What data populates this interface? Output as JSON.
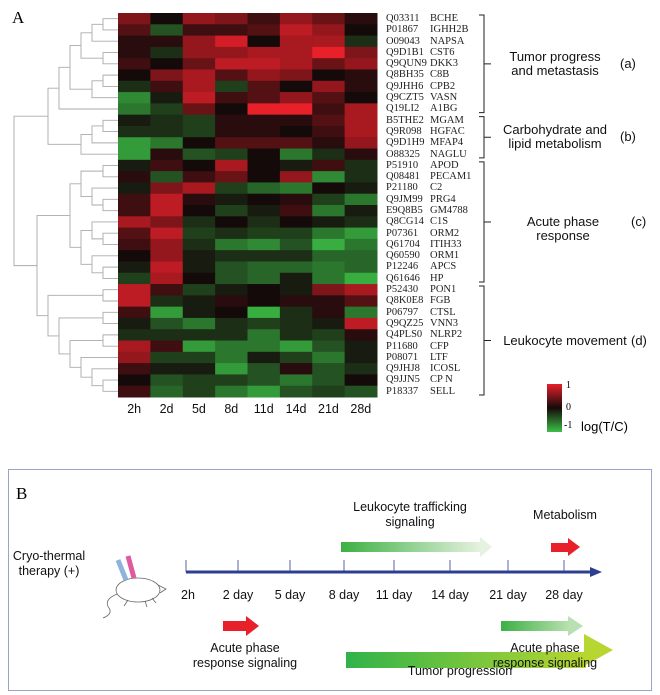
{
  "panel_a_label": "A",
  "panel_b_label": "B",
  "chart_data": {
    "type": "heatmap",
    "columns": [
      "2h",
      "2d",
      "5d",
      "8d",
      "11d",
      "14d",
      "21d",
      "28d"
    ],
    "rows": [
      {
        "id": "Q03311",
        "gene": "BCHE",
        "values": [
          0.5,
          0,
          0.6,
          0.5,
          0.2,
          0.6,
          0.4,
          0.1
        ]
      },
      {
        "id": "P01867",
        "gene": "IGHH2B",
        "values": [
          0.3,
          -0.4,
          0.2,
          0.2,
          0.3,
          0.8,
          0.6,
          0
        ]
      },
      {
        "id": "O09043",
        "gene": "NAPSA",
        "values": [
          0.1,
          0.1,
          0.6,
          0.9,
          0,
          0.7,
          0.7,
          -0.2
        ]
      },
      {
        "id": "Q9D1B1",
        "gene": "CST6",
        "values": [
          0.1,
          -0.2,
          0.6,
          0.6,
          0.7,
          0.7,
          1,
          0.5
        ]
      },
      {
        "id": "Q9QUN9",
        "gene": "DKK3",
        "values": [
          0.2,
          0,
          0.4,
          0.8,
          0.8,
          0.7,
          0.4,
          0.6
        ]
      },
      {
        "id": "Q8BH35",
        "gene": "C8B",
        "values": [
          0,
          0.5,
          0.7,
          0.3,
          0.6,
          0.5,
          0,
          0.1
        ]
      },
      {
        "id": "Q9JHH6",
        "gene": "CPB2",
        "values": [
          -0.2,
          0.2,
          0.7,
          -0.3,
          0.3,
          0,
          0.6,
          0.1
        ]
      },
      {
        "id": "Q9CZT5",
        "gene": "VASN",
        "values": [
          -0.7,
          -0.1,
          0.8,
          0.2,
          0.3,
          0.6,
          0.3,
          0
        ]
      },
      {
        "id": "Q19LI2",
        "gene": "A1BG",
        "values": [
          -0.6,
          -0.3,
          0.4,
          0,
          1,
          1,
          0.2,
          0.7
        ]
      },
      {
        "id": "B5THE2",
        "gene": "MGAM",
        "values": [
          -0.1,
          -0.2,
          -0.3,
          0.1,
          0.1,
          0.1,
          0.3,
          0.7
        ]
      },
      {
        "id": "Q9R098",
        "gene": "HGFAC",
        "values": [
          -0.2,
          -0.2,
          -0.3,
          0.1,
          0.1,
          0,
          0.2,
          0.7
        ]
      },
      {
        "id": "Q9D1H9",
        "gene": "MFAP4",
        "values": [
          -0.8,
          -0.6,
          0,
          0.3,
          0.3,
          0.3,
          0.1,
          0.6
        ]
      },
      {
        "id": "O88325",
        "gene": "NAGLU",
        "values": [
          -0.8,
          0.1,
          -0.4,
          -0.3,
          0,
          -0.6,
          -0.2,
          0.1
        ]
      },
      {
        "id": "P51910",
        "gene": "APOD",
        "values": [
          -0.1,
          0.2,
          0,
          0.7,
          0,
          -0.1,
          0.2,
          -0.2
        ]
      },
      {
        "id": "Q08481",
        "gene": "PECAM1",
        "values": [
          0.1,
          -0.4,
          0.2,
          0.4,
          0,
          0.6,
          -0.7,
          -0.2
        ]
      },
      {
        "id": "P21180",
        "gene": "C2",
        "values": [
          -0.1,
          0.5,
          0.7,
          -0.3,
          -0.5,
          -0.6,
          0,
          -0.1
        ]
      },
      {
        "id": "Q9JM99",
        "gene": "PRG4",
        "values": [
          0.2,
          0.8,
          0.1,
          -0.1,
          0,
          0.1,
          -0.3,
          -0.6
        ]
      },
      {
        "id": "E9Q8B5",
        "gene": "GM4788",
        "values": [
          0.2,
          0.8,
          0,
          -0.3,
          -0.1,
          0.2,
          -0.6,
          -0.1
        ]
      },
      {
        "id": "Q8CG14",
        "gene": "C1S",
        "values": [
          0.7,
          0.5,
          -0.2,
          0,
          -0.2,
          0,
          -0.1,
          -0.2
        ]
      },
      {
        "id": "P07361",
        "gene": "ORM2",
        "values": [
          0.3,
          0.8,
          -0.3,
          -0.2,
          -0.3,
          -0.3,
          -0.6,
          -0.8
        ]
      },
      {
        "id": "Q61704",
        "gene": "ITIH33",
        "values": [
          0.2,
          0.6,
          -0.2,
          -0.6,
          -0.7,
          -0.4,
          -0.9,
          -0.6
        ]
      },
      {
        "id": "Q60590",
        "gene": "ORM1",
        "values": [
          0,
          0.6,
          -0.1,
          -0.2,
          -0.2,
          -0.2,
          -0.5,
          -0.5
        ]
      },
      {
        "id": "P12246",
        "gene": "APCS",
        "values": [
          -0.1,
          0.8,
          -0.1,
          -0.4,
          -0.5,
          -0.5,
          -0.6,
          -0.5
        ]
      },
      {
        "id": "Q61646",
        "gene": "HP",
        "values": [
          -0.3,
          0.7,
          0,
          -0.4,
          -0.5,
          -0.1,
          -0.6,
          -0.9
        ]
      },
      {
        "id": "P52430",
        "gene": "PON1",
        "values": [
          0.8,
          0.2,
          -0.3,
          -0.1,
          0,
          -0.1,
          0.5,
          0.7
        ]
      },
      {
        "id": "Q8K0E8",
        "gene": "FGB",
        "values": [
          0.8,
          -0.2,
          -0.1,
          0.1,
          0,
          0.1,
          0.1,
          0.3
        ]
      },
      {
        "id": "P06797",
        "gene": "CTSL",
        "values": [
          0.2,
          -0.8,
          -0.1,
          0,
          -0.9,
          -0.2,
          0.1,
          -0.6
        ]
      },
      {
        "id": "Q9QZ25",
        "gene": "VNN3",
        "values": [
          -0.1,
          -0.4,
          -0.6,
          -0.2,
          -0.3,
          -0.2,
          -0.1,
          0.8
        ]
      },
      {
        "id": "Q4PLS0",
        "gene": "NLRP2",
        "values": [
          -0.2,
          -0.2,
          -0.2,
          -0.2,
          -0.6,
          -0.2,
          -0.3,
          0.1
        ]
      },
      {
        "id": "P11680",
        "gene": "CFP",
        "values": [
          0.7,
          0.2,
          -0.8,
          -0.6,
          -0.6,
          -0.8,
          -0.4,
          -0.1
        ]
      },
      {
        "id": "P08071",
        "gene": "LTF",
        "values": [
          0.6,
          -0.3,
          -0.3,
          -0.6,
          -0.1,
          -0.3,
          -0.6,
          -0.1
        ]
      },
      {
        "id": "Q9JHJ8",
        "gene": "ICOSL",
        "values": [
          0.2,
          -0.1,
          -0.1,
          -0.8,
          -0.4,
          0.1,
          -0.4,
          -0.2
        ]
      },
      {
        "id": "Q9JJN5",
        "gene": "CP N",
        "values": [
          0,
          -0.4,
          -0.3,
          -0.3,
          -0.4,
          -0.6,
          -0.4,
          0
        ]
      },
      {
        "id": "P18337",
        "gene": "SELL",
        "values": [
          0.2,
          -0.5,
          -0.3,
          -0.6,
          -0.8,
          -0.4,
          -0.3,
          -0.4
        ]
      }
    ],
    "groups": [
      {
        "label_line1": "Tumor progress",
        "label_line2": "and metastasis",
        "tag": "(a)",
        "rows": [
          0,
          8
        ]
      },
      {
        "label_line1": "Carbohydrate and",
        "label_line2": "lipid metabolism",
        "tag": "(b)",
        "rows": [
          9,
          12
        ]
      },
      {
        "label_line1": "Acute phase response",
        "label_line2": "",
        "tag": "(c)",
        "rows": [
          13,
          23
        ]
      },
      {
        "label_line1": "Leukocyte movement",
        "label_line2": "",
        "tag": "(d)",
        "rows": [
          24,
          33
        ]
      }
    ],
    "color_scale": {
      "min": -1,
      "max": 1,
      "low_color": "#3cbf46",
      "mid_color": "#140a0a",
      "high_color": "#e8202a",
      "ticks": [
        "1",
        "0",
        "-1"
      ],
      "label": "log(T/C)"
    },
    "dendrogram": true
  },
  "timeline": {
    "treatment_line1": "Cryo-thermal",
    "treatment_line2": "therapy (+)",
    "ticks": [
      "2h",
      "2 day",
      "5 day",
      "8 day",
      "11 day",
      "14 day",
      "21 day",
      "28 day"
    ],
    "axis_color": "#2e3f8f",
    "events": [
      {
        "name": "leukocyte",
        "line1": "Leukocyte trafficking",
        "line2": "signaling",
        "color": "#3cb043"
      },
      {
        "name": "metabolism",
        "line1": "Metabolism",
        "line2": "",
        "color": "#e8202a"
      },
      {
        "name": "acute-early",
        "line1": "Acute phase",
        "line2": "response signaling",
        "color": "#e8202a"
      },
      {
        "name": "acute-late",
        "line1": "Acute phase",
        "line2": "response signaling",
        "color": "#3cb043"
      },
      {
        "name": "tumor",
        "line1": "Tumor progression",
        "line2": "",
        "color": "#3cb043"
      }
    ]
  }
}
